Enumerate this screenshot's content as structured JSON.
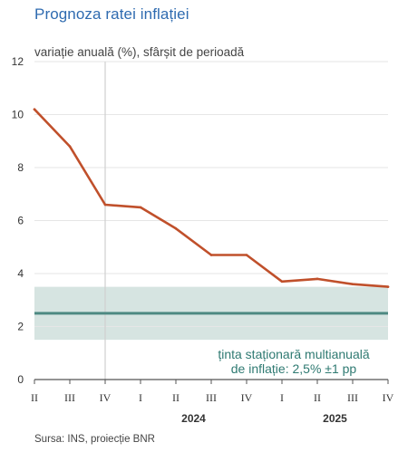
{
  "chart_data": {
    "type": "line",
    "title": "Prognoza ratei inflației",
    "ylabel": "variație anuală (%), sfârșit de perioadă",
    "ylim": [
      0,
      12
    ],
    "yticks": [
      "0",
      "2",
      "4",
      "6",
      "8",
      "10",
      "12"
    ],
    "categories": [
      "II",
      "III",
      "IV",
      "I",
      "II",
      "III",
      "IV",
      "I",
      "II",
      "III",
      "IV"
    ],
    "year_labels": [
      {
        "label": "2024",
        "center_index": 4.5
      },
      {
        "label": "2025",
        "center_index": 8.5
      }
    ],
    "forecast_start_index": 2,
    "series": [
      {
        "values": [
          10.2,
          8.8,
          6.6,
          6.5,
          5.7,
          4.7,
          4.7,
          3.7,
          3.8,
          3.6,
          3.5
        ],
        "color": "#c0502b"
      }
    ],
    "target": {
      "value": 2.5,
      "band": [
        1.5,
        3.5
      ],
      "line_color": "#4e8a82",
      "band_color": "#d6e4e1"
    },
    "annotation": [
      "ținta staționară multianuală",
      "de inflație: 2,5% ±1 pp"
    ],
    "source": "Sursa: INS, proiecție BNR"
  }
}
